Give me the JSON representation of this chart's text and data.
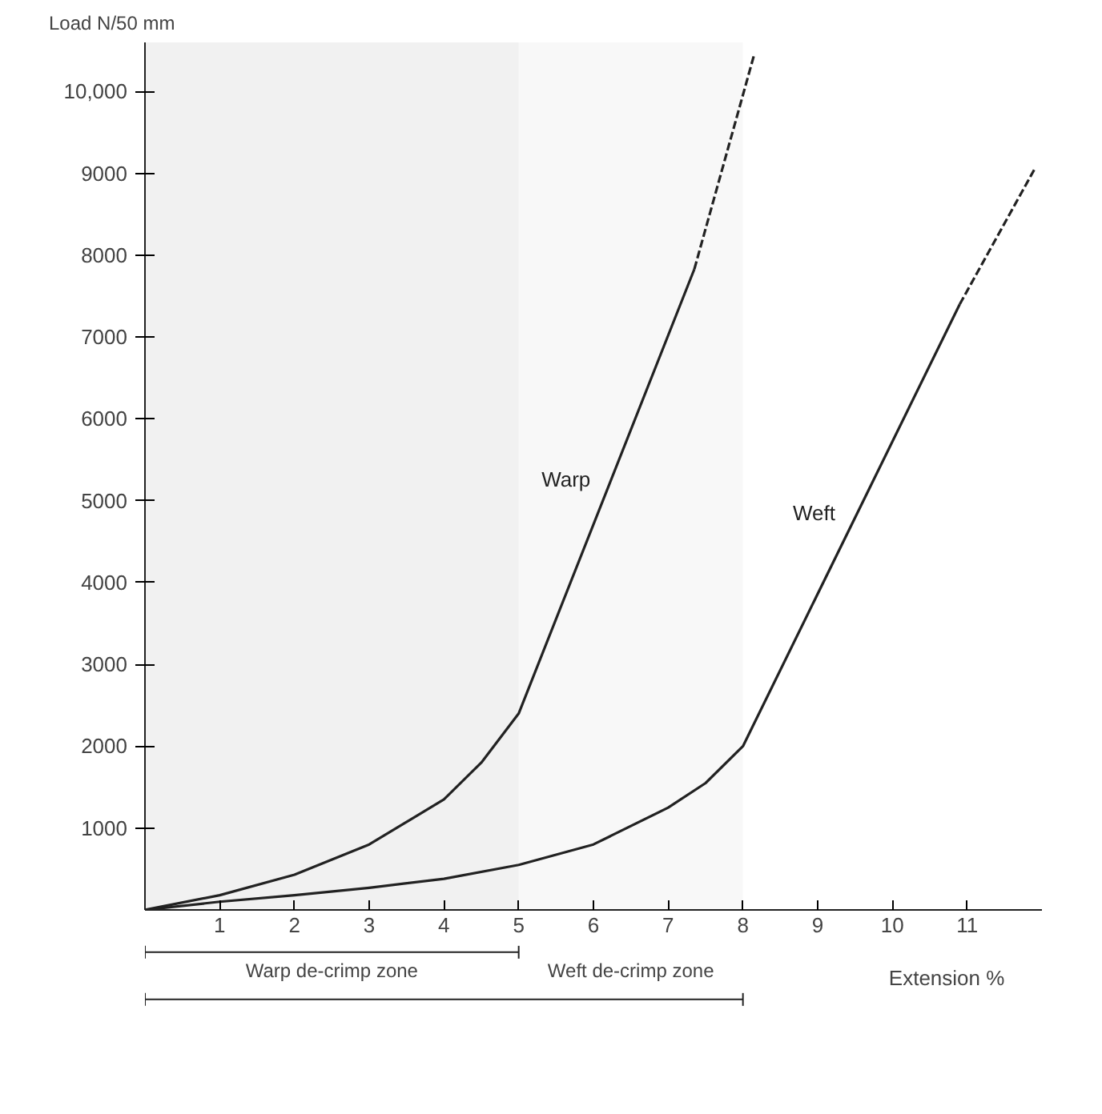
{
  "chart_data": {
    "type": "line",
    "xlabel": "Extension %",
    "ylabel": "Load  N/50 mm",
    "xlim": [
      0,
      12
    ],
    "ylim": [
      0,
      10600
    ],
    "xticks": [
      1,
      2,
      3,
      4,
      5,
      6,
      7,
      8,
      9,
      10,
      11
    ],
    "yticks": [
      1000,
      2000,
      3000,
      4000,
      5000,
      6000,
      7000,
      8000,
      9000,
      {
        "value": 10000,
        "label": "10,000"
      }
    ],
    "series": [
      {
        "name": "Warp",
        "color": "#222222",
        "x": [
          0,
          1,
          2,
          3,
          4,
          4.5,
          5,
          7.35
        ],
        "values": [
          0,
          180,
          430,
          800,
          1350,
          1800,
          2400,
          7830
        ]
      },
      {
        "color": "#222222",
        "line_style": "dashed",
        "x": [
          7.35,
          8.15
        ],
        "values": [
          7830,
          10450
        ]
      },
      {
        "name": "Weft",
        "color": "#222222",
        "x": [
          0,
          1,
          2,
          3,
          4,
          5,
          6,
          7,
          7.5,
          8,
          10.9
        ],
        "values": [
          0,
          100,
          180,
          270,
          380,
          550,
          800,
          1250,
          1550,
          2000,
          7400
        ]
      },
      {
        "color": "#222222",
        "line_style": "dashed",
        "x": [
          10.9,
          11.9
        ],
        "values": [
          7400,
          9050
        ]
      }
    ],
    "bands": [
      {
        "axis": "x",
        "from": 0,
        "to": 5,
        "label": "Warp de-crimp zone"
      },
      {
        "axis": "x",
        "from": 0,
        "to": 8,
        "label": "Weft de-crimp zone"
      }
    ],
    "grid": false
  }
}
